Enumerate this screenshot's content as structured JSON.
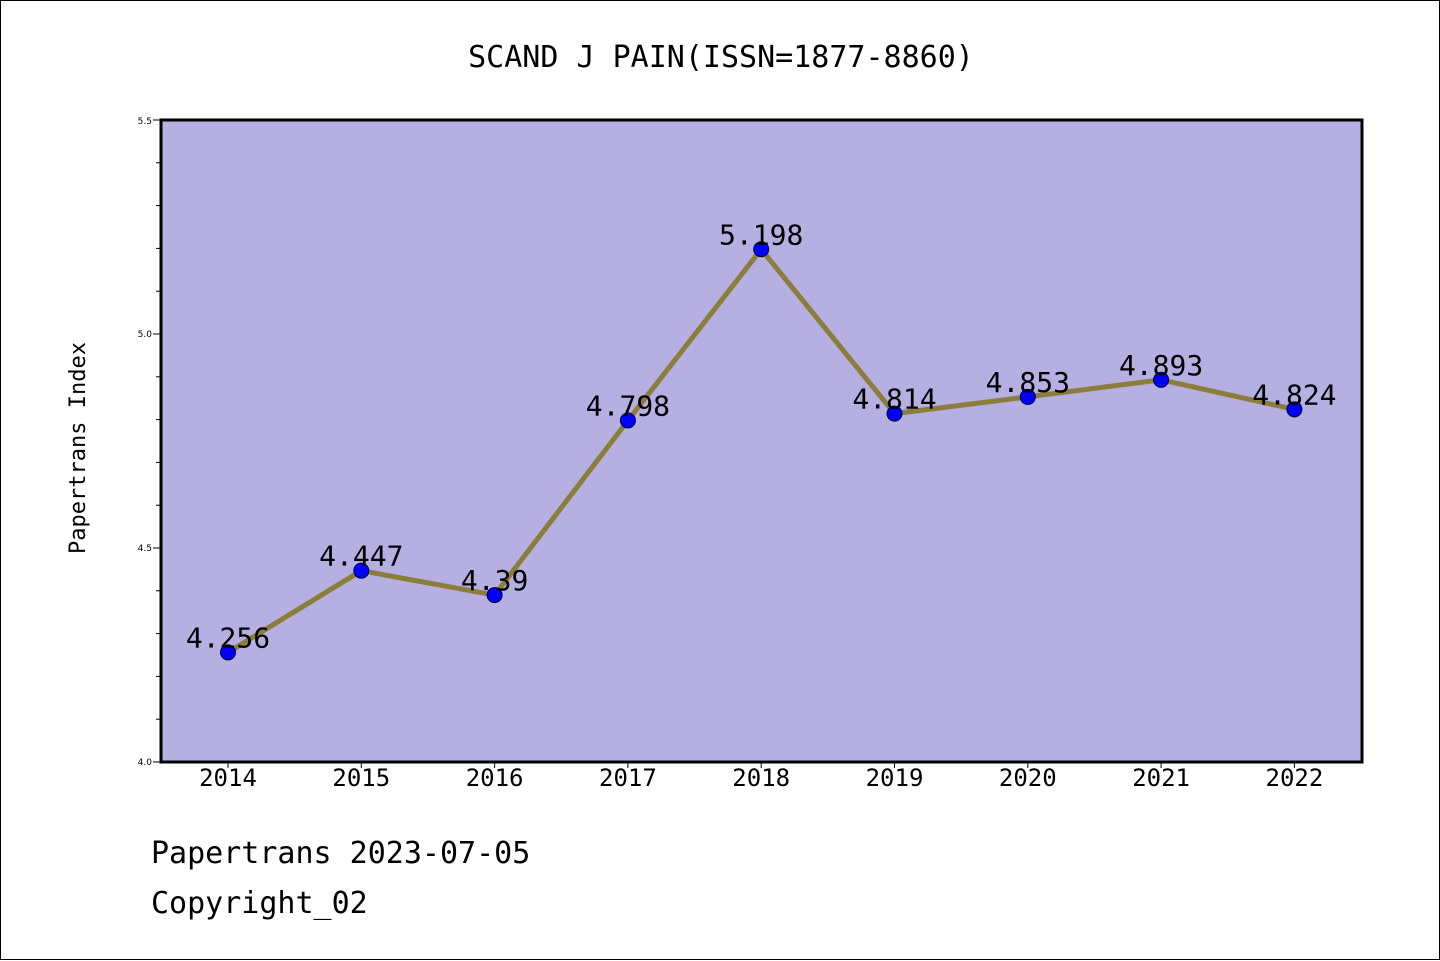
{
  "chart_data": {
    "type": "line",
    "title": "SCAND J PAIN(ISSN=1877-8860)",
    "xlabel": "",
    "ylabel": "Papertrans Index",
    "x": [
      "2014",
      "2015",
      "2016",
      "2017",
      "2018",
      "2019",
      "2020",
      "2021",
      "2022"
    ],
    "series": [
      {
        "values": [
          4.256,
          4.447,
          4.39,
          4.798,
          5.198,
          4.814,
          4.853,
          4.893,
          4.824
        ],
        "labels": [
          "4.256",
          "4.447",
          "4.39",
          "4.798",
          "5.198",
          "4.814",
          "4.853",
          "4.893",
          "4.824"
        ]
      }
    ],
    "ylim": [
      4.0,
      5.5
    ],
    "yticks": [
      "4.0",
      "4.5",
      "5.0",
      "5.5"
    ],
    "grid": false,
    "colors": {
      "plot_background": "#b5afe2",
      "line": "#8b7d3a",
      "marker": "#0000ff"
    }
  },
  "footer": {
    "line1": "Papertrans 2023-07-05",
    "line2": "Copyright_02"
  }
}
